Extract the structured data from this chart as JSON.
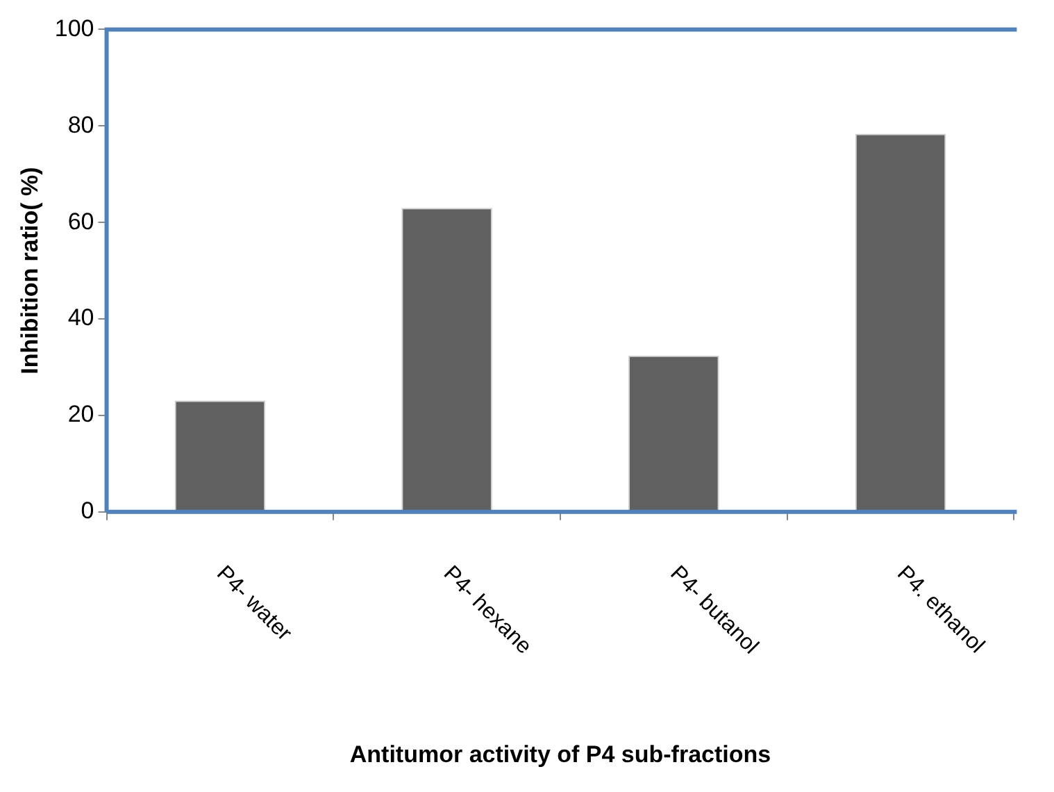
{
  "chart_data": {
    "type": "bar",
    "xlabel": "Antitumor activity of P4 sub-fractions",
    "ylabel": "Inhibition ratio( %)",
    "categories": [
      "P4- water",
      "P4- hexane",
      "P4- butanol",
      "P4. ethanol"
    ],
    "values": [
      23.1,
      63.0,
      32.4,
      78.4
    ],
    "color": "#606060",
    "ylim": [
      0,
      100
    ],
    "yticks": [
      0,
      20,
      40,
      60,
      80,
      100
    ],
    "grid": false,
    "legend": false
  }
}
